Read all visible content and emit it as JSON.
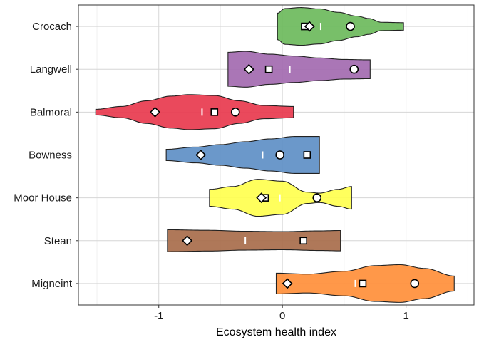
{
  "chart_data": {
    "type": "violin",
    "title": "",
    "xlabel": "Ecosystem health index",
    "ylabel": "",
    "xlim": [
      -1.65,
      1.55
    ],
    "x_ticks": [
      -1,
      0,
      1
    ],
    "x_tick_labels": [
      "-1",
      "0",
      "1"
    ],
    "grid": true,
    "categories": [
      "Crocach",
      "Langwell",
      "Balmoral",
      "Bowness",
      "Moor House",
      "Stean",
      "Migneint"
    ],
    "colors": [
      "#6DBA5C",
      "#A36AB0",
      "#E83A4E",
      "#5E8FC6",
      "#FFFF4F",
      "#A86C4B",
      "#FF8F3A"
    ],
    "markers": {
      "circle": "circle marker",
      "square": "square marker",
      "diamond": "diamond marker",
      "bar": "white median bar"
    },
    "series": [
      {
        "category": "Crocach",
        "range": [
          -0.04,
          0.98
        ],
        "profile": [
          [
            -0.04,
            0.7
          ],
          [
            0.02,
            0.95
          ],
          [
            0.15,
            1.0
          ],
          [
            0.3,
            0.93
          ],
          [
            0.45,
            0.75
          ],
          [
            0.6,
            0.55
          ],
          [
            0.7,
            0.42
          ],
          [
            0.8,
            0.22
          ],
          [
            0.98,
            0.2
          ]
        ],
        "circle": 0.55,
        "square": 0.18,
        "diamond": 0.22,
        "bar": 0.31
      },
      {
        "category": "Langwell",
        "range": [
          -0.44,
          0.71
        ],
        "profile": [
          [
            -0.44,
            0.9
          ],
          [
            -0.3,
            0.95
          ],
          [
            -0.1,
            0.8
          ],
          [
            0.1,
            0.7
          ],
          [
            0.3,
            0.6
          ],
          [
            0.5,
            0.52
          ],
          [
            0.71,
            0.5
          ]
        ],
        "circle": 0.58,
        "square": -0.11,
        "diamond": -0.27,
        "bar": 0.06
      },
      {
        "category": "Balmoral",
        "range": [
          -1.51,
          0.09
        ],
        "profile": [
          [
            -1.51,
            0.15
          ],
          [
            -1.3,
            0.3
          ],
          [
            -1.1,
            0.6
          ],
          [
            -0.9,
            0.85
          ],
          [
            -0.75,
            0.93
          ],
          [
            -0.55,
            0.88
          ],
          [
            -0.35,
            0.6
          ],
          [
            -0.15,
            0.35
          ],
          [
            0.09,
            0.3
          ]
        ],
        "circle": -0.38,
        "square": -0.55,
        "diamond": -1.03,
        "bar": -0.65
      },
      {
        "category": "Bowness",
        "range": [
          -0.94,
          0.3
        ],
        "profile": [
          [
            -0.94,
            0.3
          ],
          [
            -0.7,
            0.42
          ],
          [
            -0.5,
            0.55
          ],
          [
            -0.3,
            0.7
          ],
          [
            -0.1,
            0.85
          ],
          [
            0.1,
            0.98
          ],
          [
            0.3,
            0.98
          ]
        ],
        "circle": -0.02,
        "square": 0.2,
        "diamond": -0.66,
        "bar": -0.16
      },
      {
        "category": "Moor House",
        "range": [
          -0.59,
          0.56
        ],
        "profile": [
          [
            -0.59,
            0.45
          ],
          [
            -0.4,
            0.6
          ],
          [
            -0.2,
            0.98
          ],
          [
            0.0,
            0.88
          ],
          [
            0.2,
            0.3
          ],
          [
            0.3,
            0.25
          ],
          [
            0.45,
            0.45
          ],
          [
            0.56,
            0.6
          ]
        ],
        "circle": 0.28,
        "square": -0.14,
        "diamond": -0.17,
        "bar": -0.02
      },
      {
        "category": "Stean",
        "range": [
          -0.93,
          0.47
        ],
        "profile": [
          [
            -0.93,
            0.58
          ],
          [
            -0.6,
            0.55
          ],
          [
            -0.3,
            0.5
          ],
          [
            0.0,
            0.48
          ],
          [
            0.3,
            0.52
          ],
          [
            0.47,
            0.54
          ]
        ],
        "circle": null,
        "square": 0.17,
        "diamond": -0.77,
        "bar": -0.3
      },
      {
        "category": "Migneint",
        "range": [
          -0.05,
          1.39
        ],
        "profile": [
          [
            -0.05,
            0.55
          ],
          [
            0.2,
            0.5
          ],
          [
            0.5,
            0.65
          ],
          [
            0.75,
            0.95
          ],
          [
            0.95,
            1.0
          ],
          [
            1.15,
            0.8
          ],
          [
            1.39,
            0.4
          ]
        ],
        "circle": 1.07,
        "square": 0.65,
        "diamond": 0.04,
        "bar": 0.59
      }
    ]
  }
}
